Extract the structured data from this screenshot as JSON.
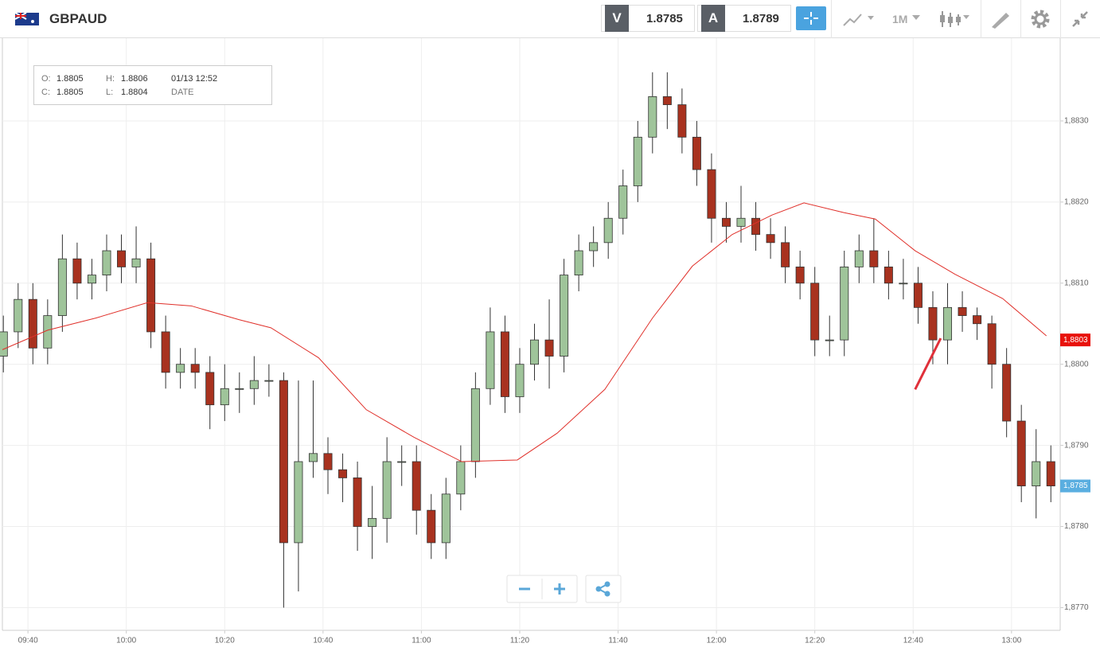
{
  "header": {
    "symbol": "GBPAUD",
    "sell_label": "V",
    "sell_price": "1.8785",
    "buy_label": "A",
    "buy_price": "1.8789",
    "timeframe": "1M"
  },
  "ohlc_info": {
    "open_label": "O:",
    "open": "1.8805",
    "high_label": "H:",
    "high": "1.8806",
    "datetime": "01/13 12:52",
    "close_label": "C:",
    "close": "1.8805",
    "low_label": "L:",
    "low": "1.8804",
    "date_label": "DATE"
  },
  "chart_data": {
    "type": "candlestick",
    "x": [
      575,
      578,
      581,
      584,
      587,
      590,
      593,
      596,
      599,
      602,
      605,
      608,
      611,
      614,
      617,
      620,
      623,
      626,
      629,
      632,
      635,
      638,
      641,
      644,
      647,
      650,
      653,
      656,
      659,
      662,
      665,
      668,
      671,
      674,
      677,
      680,
      683,
      686,
      689,
      692,
      695,
      698,
      701,
      704,
      707,
      710,
      713,
      716,
      719,
      722,
      725,
      728,
      731,
      734,
      737,
      740,
      743,
      746,
      749,
      752,
      755,
      758,
      761,
      764,
      767,
      770,
      773,
      776,
      779,
      782,
      785,
      788
    ],
    "open": [
      1.8801,
      1.8804,
      1.8808,
      1.8802,
      1.8806,
      1.8813,
      1.881,
      1.8811,
      1.8814,
      1.8812,
      1.8813,
      1.8804,
      1.8799,
      1.88,
      1.8799,
      1.8795,
      1.8797,
      1.8797,
      1.8798,
      1.8798,
      1.8778,
      1.8788,
      1.8789,
      1.8787,
      1.8786,
      1.878,
      1.8781,
      1.8788,
      1.8788,
      1.8782,
      1.8778,
      1.8784,
      1.8788,
      1.8797,
      1.8804,
      1.8796,
      1.88,
      1.8803,
      1.8801,
      1.8811,
      1.8814,
      1.8815,
      1.8818,
      1.8822,
      1.8828,
      1.8833,
      1.8832,
      1.8828,
      1.8824,
      1.8818,
      1.8817,
      1.8818,
      1.8816,
      1.8815,
      1.8812,
      1.881,
      1.8803,
      1.8803,
      1.8812,
      1.8814,
      1.8812,
      1.881,
      1.881,
      1.8807,
      1.8803,
      1.8807,
      1.8806,
      1.8805,
      1.88,
      1.8793,
      1.8785,
      1.8788
    ],
    "high": [
      1.8806,
      1.881,
      1.881,
      1.8808,
      1.8816,
      1.8815,
      1.8813,
      1.8816,
      1.8816,
      1.8817,
      1.8815,
      1.8806,
      1.8802,
      1.8802,
      1.8801,
      1.88,
      1.8799,
      1.8801,
      1.88,
      1.8799,
      1.8798,
      1.8798,
      1.8791,
      1.8789,
      1.8788,
      1.8785,
      1.8791,
      1.879,
      1.879,
      1.8784,
      1.8786,
      1.879,
      1.8799,
      1.8807,
      1.8806,
      1.8802,
      1.8805,
      1.8808,
      1.8813,
      1.8816,
      1.8817,
      1.882,
      1.8824,
      1.883,
      1.8836,
      1.8836,
      1.8834,
      1.883,
      1.8826,
      1.882,
      1.8822,
      1.882,
      1.8818,
      1.8817,
      1.8814,
      1.8812,
      1.8806,
      1.8814,
      1.8816,
      1.8818,
      1.8814,
      1.8813,
      1.8812,
      1.8809,
      1.881,
      1.8809,
      1.8807,
      1.8806,
      1.8802,
      1.8795,
      1.8792,
      1.879
    ],
    "low": [
      1.8799,
      1.8802,
      1.88,
      1.88,
      1.8804,
      1.8808,
      1.8808,
      1.8809,
      1.881,
      1.881,
      1.8802,
      1.8797,
      1.8797,
      1.8797,
      1.8792,
      1.8793,
      1.8794,
      1.8795,
      1.8796,
      1.877,
      1.8772,
      1.8786,
      1.8784,
      1.8783,
      1.8777,
      1.8776,
      1.8778,
      1.8785,
      1.8779,
      1.8776,
      1.8776,
      1.8782,
      1.8786,
      1.8795,
      1.8794,
      1.8794,
      1.8798,
      1.8797,
      1.8799,
      1.8809,
      1.8812,
      1.8813,
      1.8816,
      1.882,
      1.8826,
      1.8829,
      1.8826,
      1.8822,
      1.8815,
      1.8815,
      1.8815,
      1.8814,
      1.8813,
      1.881,
      1.8808,
      1.8801,
      1.8801,
      1.8801,
      1.881,
      1.881,
      1.8808,
      1.8808,
      1.8805,
      1.88,
      1.88,
      1.8804,
      1.8803,
      1.8797,
      1.8791,
      1.8783,
      1.8781,
      1.8783
    ],
    "close": [
      1.8804,
      1.8808,
      1.8802,
      1.8806,
      1.8813,
      1.881,
      1.8811,
      1.8814,
      1.8812,
      1.8813,
      1.8804,
      1.8799,
      1.88,
      1.8799,
      1.8795,
      1.8797,
      1.8797,
      1.8798,
      1.8798,
      1.8778,
      1.8788,
      1.8789,
      1.8787,
      1.8786,
      1.878,
      1.8781,
      1.8788,
      1.8788,
      1.8782,
      1.8778,
      1.8784,
      1.8788,
      1.8797,
      1.8804,
      1.8796,
      1.88,
      1.8803,
      1.8801,
      1.8811,
      1.8814,
      1.8815,
      1.8818,
      1.8822,
      1.8828,
      1.8833,
      1.8832,
      1.8828,
      1.8824,
      1.8818,
      1.8817,
      1.8818,
      1.8816,
      1.8815,
      1.8812,
      1.881,
      1.8803,
      1.8803,
      1.8812,
      1.8814,
      1.8812,
      1.881,
      1.881,
      1.8807,
      1.8803,
      1.8807,
      1.8806,
      1.8805,
      1.88,
      1.8793,
      1.8785,
      1.8788,
      1.8785
    ],
    "up_color": "#9fc49a",
    "down_color": "#a8321f",
    "moving_average": {
      "color": "#e0302a",
      "x": [
        574.8,
        584,
        593.8,
        604.3,
        613.2,
        622.9,
        629.4,
        639.1,
        648.8,
        658.5,
        668.2,
        679.5,
        687.6,
        697.3,
        707,
        715.1,
        723.2,
        731.3,
        737.8,
        745.9,
        752.3,
        760.4,
        768.5,
        778.2,
        787.1
      ],
      "values": [
        1.88018,
        1.88042,
        1.88057,
        1.88076,
        1.88072,
        1.88055,
        1.88045,
        1.88008,
        1.87944,
        1.8791,
        1.8788,
        1.87882,
        1.87915,
        1.87969,
        1.88057,
        1.88121,
        1.8816,
        1.88184,
        1.88199,
        1.88187,
        1.88179,
        1.8814,
        1.88111,
        1.88081,
        1.88035
      ]
    },
    "trendline": {
      "color": "#e0303a",
      "x": [
        760.4,
        765.6
      ],
      "values": [
        1.87969,
        1.88032
      ]
    },
    "price_tags": [
      {
        "value": 1.8803,
        "label": "1,8803",
        "color": "#e8120c"
      },
      {
        "value": 1.8785,
        "label": "1,8785",
        "color": "#5aaee0"
      }
    ],
    "xlim": [
      574.8,
      789.9
    ],
    "ylim": [
      1.87672,
      1.88402
    ],
    "xticks": [
      {
        "value": 580,
        "label": "09:40"
      },
      {
        "value": 600,
        "label": "10:00"
      },
      {
        "value": 620,
        "label": "10:20"
      },
      {
        "value": 640,
        "label": "10:40"
      },
      {
        "value": 660,
        "label": "11:00"
      },
      {
        "value": 680,
        "label": "11:20"
      },
      {
        "value": 700,
        "label": "11:40"
      },
      {
        "value": 720,
        "label": "12:00"
      },
      {
        "value": 740,
        "label": "12:20"
      },
      {
        "value": 760,
        "label": "12:40"
      },
      {
        "value": 780,
        "label": "13:00"
      }
    ],
    "yticks": [
      {
        "value": 1.877,
        "label": "1,8770"
      },
      {
        "value": 1.878,
        "label": "1,8780"
      },
      {
        "value": 1.879,
        "label": "1,8790"
      },
      {
        "value": 1.88,
        "label": "1,8800"
      },
      {
        "value": 1.881,
        "label": "1,8810"
      },
      {
        "value": 1.882,
        "label": "1,8820"
      },
      {
        "value": 1.883,
        "label": "1,8830"
      }
    ],
    "grid": true
  }
}
